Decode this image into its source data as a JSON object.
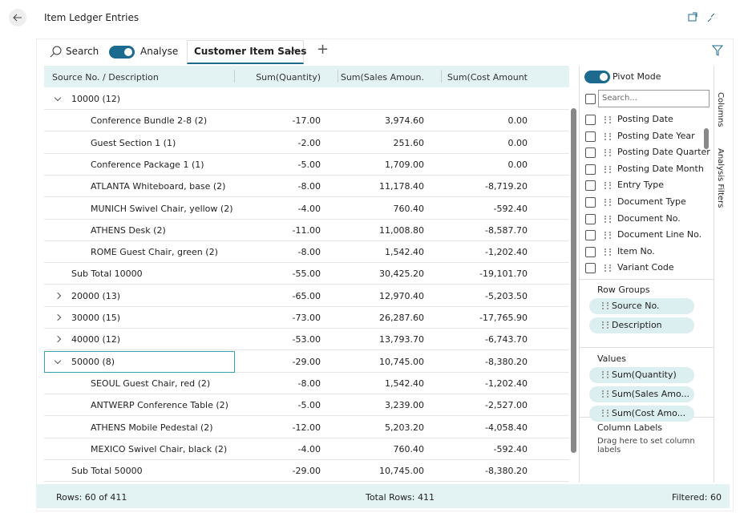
{
  "header": {
    "title": "Item Ledger Entries"
  },
  "toolbar": {
    "search": "Search",
    "analyse": "Analyse",
    "tab": "Customer Item Sales"
  },
  "table": {
    "columns": [
      "Source No. / Description",
      "Sum(Quantity)",
      "Sum(Sales Amoun.",
      "Sum(Cost Amount"
    ],
    "groups": [
      {
        "label": "10000 (12)",
        "items": [
          [
            "Conference Bundle 2-8 (2)",
            "-17.00",
            "3,974.60",
            "0.00"
          ],
          [
            "Guest Section 1 (1)",
            "-2.00",
            "251.60",
            "0.00"
          ],
          [
            "Conference Package 1 (1)",
            "-5.00",
            "1,709.00",
            "0.00"
          ],
          [
            "ATLANTA Whiteboard, base (2)",
            "-8.00",
            "11,178.40",
            "-8,719.20"
          ],
          [
            "MUNICH Swivel Chair, yellow (2)",
            "-4.00",
            "760.40",
            "-592.40"
          ],
          [
            "ATHENS Desk (2)",
            "-11.00",
            "11,008.80",
            "-8,587.70"
          ],
          [
            "ROME Guest Chair, green (2)",
            "-8.00",
            "1,542.40",
            "-1,202.40"
          ]
        ],
        "subtotal": [
          "Sub Total 10000",
          "-55.00",
          "30,425.20",
          "-19,101.70"
        ]
      },
      {
        "label": "20000 (13)",
        "values": [
          "-65.00",
          "12,970.40",
          "-5,203.50"
        ]
      },
      {
        "label": "30000 (15)",
        "values": [
          "-73.00",
          "26,287.60",
          "-17,765.90"
        ]
      },
      {
        "label": "40000 (12)",
        "values": [
          "-53.00",
          "13,793.70",
          "-6,743.70"
        ]
      },
      {
        "label": "50000 (8)",
        "values": [
          "-29.00",
          "10,745.00",
          "-8,380.20"
        ],
        "items": [
          [
            "SEOUL Guest Chair, red (2)",
            "-8.00",
            "1,542.40",
            "-1,202.40"
          ],
          [
            "ANTWERP Conference Table (2)",
            "-5.00",
            "3,239.00",
            "-2,527.00"
          ],
          [
            "ATHENS Mobile Pedestal (2)",
            "-12.00",
            "5,203.20",
            "-4,058.40"
          ],
          [
            "MEXICO Swivel Chair, black (2)",
            "-4.00",
            "760.40",
            "-592.40"
          ]
        ],
        "subtotal": [
          "Sub Total 50000",
          "-29.00",
          "10,745.00",
          "-8,380.20"
        ]
      }
    ]
  },
  "panel": {
    "pivot_mode": "Pivot Mode",
    "search_placeholder": "Search...",
    "columns": [
      "Posting Date",
      "Posting Date Year",
      "Posting Date Quarter",
      "Posting Date Month",
      "Entry Type",
      "Document Type",
      "Document No.",
      "Document Line No.",
      "Item No.",
      "Variant Code"
    ],
    "row_groups": {
      "title": "Row Groups",
      "items": [
        "Source No.",
        "Description"
      ]
    },
    "values": {
      "title": "Values",
      "items": [
        "Sum(Quantity)",
        "Sum(Sales Amo...",
        "Sum(Cost Amo..."
      ]
    },
    "column_labels": {
      "title": "Column Labels",
      "hint": "Drag here to set column labels"
    },
    "side_tabs": [
      "Columns",
      "Analysis Filters"
    ]
  },
  "footer": {
    "rows": "Rows: 60 of 411",
    "total": "Total Rows: 411",
    "filtered": "Filtered: 60"
  }
}
